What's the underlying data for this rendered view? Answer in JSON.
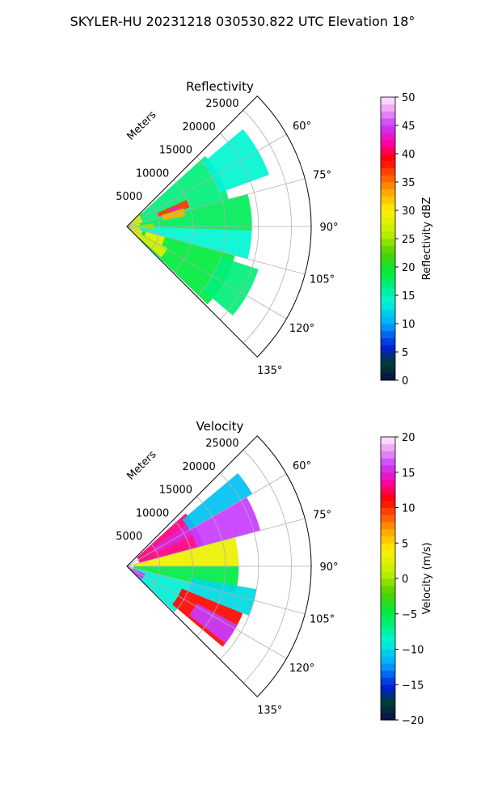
{
  "figure": {
    "suptitle": "SKYLER-HU  20231218  030530.822 UTC Elevation 18°"
  },
  "chart_data": [
    {
      "type": "heatmap",
      "subtype": "polar-sector",
      "title": "Reflectivity",
      "radial_label": "Meters",
      "radial_ticks": [
        5000,
        10000,
        15000,
        20000,
        25000
      ],
      "radial_tick_labels": [
        "5000",
        "10000",
        "15000",
        "20000",
        "25000"
      ],
      "rmax": 28000,
      "angle_range": [
        45,
        135
      ],
      "angle_ticks": [
        60,
        75,
        90,
        105,
        120,
        135
      ],
      "angle_tick_labels": [
        "60°",
        "75°",
        "90°",
        "105°",
        "120°",
        "135°"
      ],
      "grid": true,
      "colorbar": {
        "label": "Reflectivity dBZ",
        "range": [
          0,
          50
        ],
        "ticks": [
          0,
          5,
          10,
          15,
          20,
          25,
          30,
          35,
          40,
          45,
          50
        ],
        "tick_labels": [
          "0",
          "5",
          "10",
          "15",
          "20",
          "25",
          "30",
          "35",
          "40",
          "45",
          "50"
        ]
      },
      "regions": [
        {
          "azimuth": [
            46,
            134
          ],
          "range_m": [
            0,
            3000
          ],
          "value": 27
        },
        {
          "azimuth": [
            48,
            75
          ],
          "range_m": [
            2500,
            16000
          ],
          "value": 17
        },
        {
          "azimuth": [
            50,
            70
          ],
          "range_m": [
            15000,
            23000
          ],
          "value": 14
        },
        {
          "azimuth": [
            75,
            92
          ],
          "range_m": [
            2000,
            19000
          ],
          "value": 18
        },
        {
          "azimuth": [
            92,
            105
          ],
          "range_m": [
            2000,
            19000
          ],
          "value": 14
        },
        {
          "azimuth": [
            105,
            134
          ],
          "range_m": [
            2500,
            17000
          ],
          "value": 19
        },
        {
          "azimuth": [
            108,
            130
          ],
          "range_m": [
            15000,
            21000
          ],
          "value": 17
        },
        {
          "azimuth": [
            118,
            132
          ],
          "range_m": [
            2000,
            7000
          ],
          "value": 28
        },
        {
          "azimuth": [
            105,
            118
          ],
          "range_m": [
            3000,
            6000
          ],
          "value": 29
        },
        {
          "azimuth": [
            66,
            73
          ],
          "range_m": [
            5000,
            10000
          ],
          "value": 37
        },
        {
          "azimuth": [
            68,
            71
          ],
          "range_m": [
            7000,
            8500
          ],
          "value": 44
        },
        {
          "azimuth": [
            72,
            80
          ],
          "range_m": [
            5500,
            9000
          ],
          "value": 33
        },
        {
          "azimuth": [
            84,
            96
          ],
          "range_m": [
            1000,
            4000
          ],
          "value": 25
        }
      ]
    },
    {
      "type": "heatmap",
      "subtype": "polar-sector",
      "title": "Velocity",
      "radial_label": "Meters",
      "radial_ticks": [
        5000,
        10000,
        15000,
        20000,
        25000
      ],
      "radial_tick_labels": [
        "5000",
        "10000",
        "15000",
        "20000",
        "25000"
      ],
      "rmax": 28000,
      "angle_range": [
        45,
        135
      ],
      "angle_ticks": [
        60,
        75,
        90,
        105,
        120,
        135
      ],
      "angle_tick_labels": [
        "60°",
        "75°",
        "90°",
        "105°",
        "120°",
        "135°"
      ],
      "grid": true,
      "colorbar": {
        "label": "Velocity (m/s)",
        "range": [
          -20,
          20
        ],
        "ticks": [
          -20,
          -15,
          -10,
          -5,
          0,
          5,
          10,
          15,
          20
        ],
        "tick_labels": [
          "−20",
          "−15",
          "−10",
          "−5",
          "0",
          "5",
          "10",
          "15",
          "20"
        ]
      },
      "regions": [
        {
          "azimuth": [
            48,
            75
          ],
          "range_m": [
            2000,
            12000
          ],
          "value": 13
        },
        {
          "azimuth": [
            55,
            65
          ],
          "range_m": [
            5000,
            12000
          ],
          "value": 15
        },
        {
          "azimuth": [
            50,
            60
          ],
          "range_m": [
            11000,
            22000
          ],
          "value": -11
        },
        {
          "azimuth": [
            60,
            75
          ],
          "range_m": [
            11000,
            21000
          ],
          "value": 16
        },
        {
          "azimuth": [
            75,
            90
          ],
          "range_m": [
            1000,
            17000
          ],
          "value": 3
        },
        {
          "azimuth": [
            90,
            104
          ],
          "range_m": [
            1000,
            17000
          ],
          "value": -5
        },
        {
          "azimuth": [
            104,
            134
          ],
          "range_m": [
            1000,
            10000
          ],
          "value": -9
        },
        {
          "azimuth": [
            112,
            130
          ],
          "range_m": [
            9000,
            19000
          ],
          "value": 11
        },
        {
          "azimuth": [
            118,
            128
          ],
          "range_m": [
            12000,
            19000
          ],
          "value": 16
        },
        {
          "azimuth": [
            100,
            112
          ],
          "range_m": [
            10000,
            20000
          ],
          "value": -10
        },
        {
          "azimuth": [
            112,
            132
          ],
          "range_m": [
            500,
            3000
          ],
          "value": 16
        }
      ]
    }
  ]
}
